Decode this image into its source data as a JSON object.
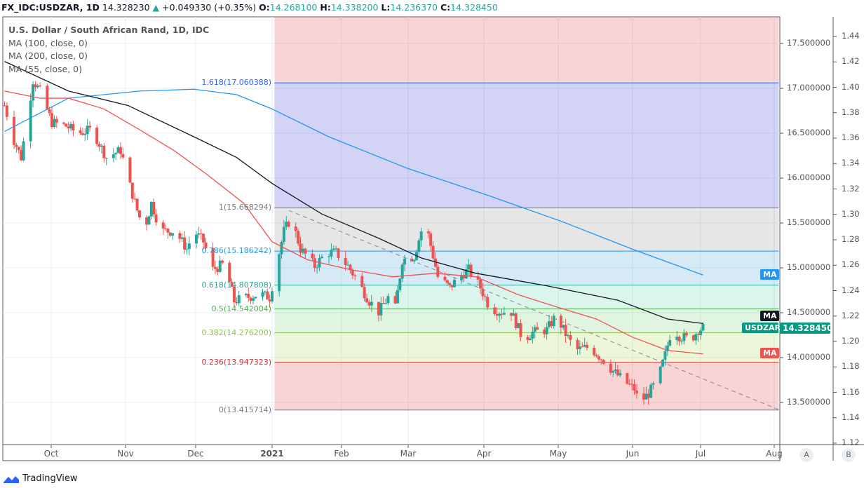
{
  "header": {
    "symbol": "FX_IDC:USDZAR, 1D",
    "last": "14.328230",
    "arrow": "▲",
    "change": "+0.049330 (+0.35%)",
    "o_label": "O:",
    "o": "14.268100",
    "h_label": "H:",
    "h": "14.338200",
    "l_label": "L:",
    "l": "14.236370",
    "c_label": "C:",
    "c": "14.328450"
  },
  "legend": {
    "title": "U.S. Dollar / South African Rand, 1D, IDC",
    "ma100": "MA (100, close, 0)",
    "ma200": "MA (200, close, 0)",
    "ma55": "MA (55, close, 0)"
  },
  "price_axis": [
    "17.500000",
    "17.000000",
    "16.500000",
    "16.000000",
    "15.500000",
    "15.000000",
    "14.500000",
    "14.000000",
    "13.500000"
  ],
  "secondary_axis": [
    "1.44",
    "1.42",
    "1.40",
    "1.38",
    "1.36",
    "1.34",
    "1.32",
    "1.30",
    "1.28",
    "1.26",
    "1.24",
    "1.22",
    "1.20",
    "1.18",
    "1.16",
    "1.14",
    "1.12"
  ],
  "time_axis": [
    "Oct",
    "Nov",
    "Dec",
    "2021",
    "Feb",
    "Mar",
    "Apr",
    "May",
    "Jun",
    "Jul",
    "Aug"
  ],
  "tags": {
    "ma200": "MA",
    "ma100": "MA",
    "ma55": "MA",
    "symbol": "USDZAR",
    "price": "14.328450"
  },
  "scale_buttons": {
    "a": "A",
    "b": "B"
  },
  "brand": "TradingView",
  "colors": {
    "up": "#26a69a",
    "down": "#ef5350",
    "ma200": "#2196f3",
    "ma100": "#131722",
    "ma55": "#ef5350"
  },
  "chart_data": {
    "type": "candlestick",
    "title": "U.S. Dollar / South African Rand, 1D, IDC",
    "ylim": [
      13.1,
      17.8
    ],
    "fib_levels": [
      {
        "ratio": "1.618",
        "price": 17.060388,
        "label": "1.618(17.060388)",
        "color": "#2962ff",
        "fill": "rgba(80,80,220,0.25)"
      },
      {
        "ratio": "1",
        "price": 15.668294,
        "label": "1(15.668294)",
        "color": "#787b86",
        "fill": "rgba(140,140,140,0.22)"
      },
      {
        "ratio": "0.786",
        "price": 15.186242,
        "label": "0.786(15.186242)",
        "color": "#2196f3",
        "fill": "rgba(90,170,220,0.25)"
      },
      {
        "ratio": "0.618",
        "price": 14.807808,
        "label": "0.618(14.807808)",
        "color": "#26a69a",
        "fill": "rgba(60,200,150,0.18)"
      },
      {
        "ratio": "0.5",
        "price": 14.542004,
        "label": "0.5(14.542004)",
        "color": "#4caf50",
        "fill": "rgba(80,200,80,0.18)"
      },
      {
        "ratio": "0.382",
        "price": 14.2762,
        "label": "0.382(14.276200)",
        "color": "#8bc34a",
        "fill": "rgba(160,210,60,0.2)"
      },
      {
        "ratio": "0.236",
        "price": 13.947323,
        "label": "0.236(13.947323)",
        "color": "#d32f2f",
        "fill": "rgba(230,100,100,0.28)"
      },
      {
        "ratio": "0",
        "price": 13.415714,
        "label": "0(13.415714)",
        "color": "#787b86",
        "fill": "rgba(230,100,100,0.28)"
      }
    ],
    "fib_top_fill": "rgba(230,100,100,0.28)",
    "fib_start": "2021-01-02",
    "fib_end": "2021-08-03",
    "trendline": [
      {
        "date": "2021-01-08",
        "price": 15.64
      },
      {
        "date": "2021-08-03",
        "price": 13.42
      }
    ],
    "close_keypoints": [
      [
        "2020-09-10",
        16.81
      ],
      [
        "2020-09-14",
        16.42
      ],
      [
        "2020-09-17",
        16.23
      ],
      [
        "2020-09-22",
        17.09
      ],
      [
        "2020-09-25",
        16.97
      ],
      [
        "2020-09-30",
        16.62
      ],
      [
        "2020-10-06",
        16.58
      ],
      [
        "2020-10-11",
        16.5
      ],
      [
        "2020-10-17",
        16.54
      ],
      [
        "2020-10-23",
        16.23
      ],
      [
        "2020-10-29",
        16.31
      ],
      [
        "2020-11-02",
        15.91
      ],
      [
        "2020-11-05",
        15.64
      ],
      [
        "2020-11-08",
        15.41
      ],
      [
        "2020-11-11",
        15.72
      ],
      [
        "2020-11-15",
        15.41
      ],
      [
        "2020-11-21",
        15.41
      ],
      [
        "2020-11-26",
        15.21
      ],
      [
        "2020-11-29",
        15.41
      ],
      [
        "2020-12-03",
        15.29
      ],
      [
        "2020-12-07",
        14.98
      ],
      [
        "2020-12-12",
        15.05
      ],
      [
        "2020-12-16",
        14.63
      ],
      [
        "2020-12-21",
        14.67
      ],
      [
        "2020-12-27",
        14.71
      ],
      [
        "2020-12-31",
        14.67
      ],
      [
        "2021-01-03",
        15.05
      ],
      [
        "2021-01-06",
        15.41
      ],
      [
        "2021-01-09",
        15.56
      ],
      [
        "2021-01-13",
        15.21
      ],
      [
        "2021-01-19",
        15.02
      ],
      [
        "2021-01-24",
        15.17
      ],
      [
        "2021-01-28",
        15.17
      ],
      [
        "2021-02-02",
        15.02
      ],
      [
        "2021-02-06",
        14.86
      ],
      [
        "2021-02-11",
        14.63
      ],
      [
        "2021-02-15",
        14.51
      ],
      [
        "2021-02-19",
        14.67
      ],
      [
        "2021-02-22",
        14.55
      ],
      [
        "2021-02-25",
        15.09
      ],
      [
        "2021-03-02",
        15.13
      ],
      [
        "2021-03-05",
        15.41
      ],
      [
        "2021-03-07",
        15.48
      ],
      [
        "2021-03-09",
        15.25
      ],
      [
        "2021-03-12",
        14.9
      ],
      [
        "2021-03-17",
        14.78
      ],
      [
        "2021-03-21",
        14.9
      ],
      [
        "2021-03-25",
        14.98
      ],
      [
        "2021-03-30",
        14.78
      ],
      [
        "2021-04-03",
        14.55
      ],
      [
        "2021-04-08",
        14.51
      ],
      [
        "2021-04-12",
        14.51
      ],
      [
        "2021-04-17",
        14.2
      ],
      [
        "2021-04-21",
        14.28
      ],
      [
        "2021-04-27",
        14.31
      ],
      [
        "2021-05-01",
        14.47
      ],
      [
        "2021-05-04",
        14.31
      ],
      [
        "2021-05-09",
        14.08
      ],
      [
        "2021-05-15",
        14.12
      ],
      [
        "2021-05-21",
        13.97
      ],
      [
        "2021-05-25",
        13.85
      ],
      [
        "2021-05-30",
        13.73
      ],
      [
        "2021-06-03",
        13.65
      ],
      [
        "2021-06-05",
        13.49
      ],
      [
        "2021-06-09",
        13.6
      ],
      [
        "2021-06-13",
        13.76
      ],
      [
        "2021-06-16",
        14.03
      ],
      [
        "2021-06-19",
        14.35
      ],
      [
        "2021-06-22",
        14.24
      ],
      [
        "2021-06-27",
        14.2
      ],
      [
        "2021-06-30",
        14.31
      ],
      [
        "2021-07-02",
        14.33
      ]
    ],
    "series": [
      {
        "name": "MA (200, close, 0)",
        "color": "#2196f3",
        "points": [
          [
            "2020-09-10",
            16.52
          ],
          [
            "2020-10-07",
            16.89
          ],
          [
            "2020-11-06",
            16.97
          ],
          [
            "2020-11-29",
            16.99
          ],
          [
            "2020-12-17",
            16.93
          ],
          [
            "2021-01-01",
            16.77
          ],
          [
            "2021-01-25",
            16.46
          ],
          [
            "2021-02-27",
            16.11
          ],
          [
            "2021-04-03",
            15.8
          ],
          [
            "2021-05-03",
            15.52
          ],
          [
            "2021-06-02",
            15.21
          ],
          [
            "2021-07-02",
            14.92
          ]
        ]
      },
      {
        "name": "MA (100, close, 0)",
        "color": "#131722",
        "points": [
          [
            "2020-09-10",
            17.3
          ],
          [
            "2020-10-07",
            16.97
          ],
          [
            "2020-11-01",
            16.81
          ],
          [
            "2020-11-29",
            16.46
          ],
          [
            "2020-12-17",
            16.23
          ],
          [
            "2021-01-01",
            15.94
          ],
          [
            "2021-01-22",
            15.6
          ],
          [
            "2021-02-15",
            15.33
          ],
          [
            "2021-03-05",
            15.11
          ],
          [
            "2021-03-28",
            14.94
          ],
          [
            "2021-04-27",
            14.8
          ],
          [
            "2021-05-27",
            14.64
          ],
          [
            "2021-06-17",
            14.43
          ],
          [
            "2021-07-02",
            14.38
          ]
        ]
      },
      {
        "name": "MA (55, close, 0)",
        "color": "#ef5350",
        "points": [
          [
            "2020-09-10",
            16.97
          ],
          [
            "2020-09-25",
            16.89
          ],
          [
            "2020-10-07",
            16.89
          ],
          [
            "2020-10-22",
            16.77
          ],
          [
            "2020-11-06",
            16.54
          ],
          [
            "2020-11-21",
            16.3
          ],
          [
            "2020-12-05",
            16.03
          ],
          [
            "2020-12-20",
            15.72
          ],
          [
            "2021-01-01",
            15.29
          ],
          [
            "2021-01-16",
            15.09
          ],
          [
            "2021-02-03",
            14.98
          ],
          [
            "2021-02-21",
            14.9
          ],
          [
            "2021-03-11",
            14.94
          ],
          [
            "2021-03-28",
            14.9
          ],
          [
            "2021-04-15",
            14.7
          ],
          [
            "2021-05-03",
            14.55
          ],
          [
            "2021-05-18",
            14.43
          ],
          [
            "2021-06-02",
            14.23
          ],
          [
            "2021-06-17",
            14.08
          ],
          [
            "2021-07-02",
            14.04
          ]
        ]
      }
    ]
  }
}
